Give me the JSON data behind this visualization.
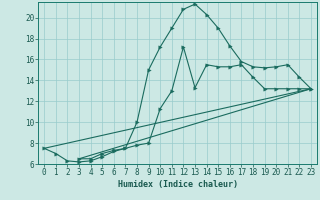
{
  "xlabel": "Humidex (Indice chaleur)",
  "ylabel": "",
  "xlim": [
    -0.5,
    23.5
  ],
  "ylim": [
    6,
    21.5
  ],
  "yticks": [
    6,
    8,
    10,
    12,
    14,
    16,
    18,
    20
  ],
  "xticks": [
    0,
    1,
    2,
    3,
    4,
    5,
    6,
    7,
    8,
    9,
    10,
    11,
    12,
    13,
    14,
    15,
    16,
    17,
    18,
    19,
    20,
    21,
    22,
    23
  ],
  "background_color": "#cce8e4",
  "grid_color": "#99cccc",
  "line_color": "#1a6b5e",
  "curves_with_markers": [
    {
      "x": [
        0,
        1,
        2,
        3,
        4,
        5,
        6,
        7,
        8,
        9,
        10,
        11,
        12,
        13,
        14,
        15,
        16,
        17,
        18,
        19,
        20,
        21,
        22,
        23
      ],
      "y": [
        7.5,
        7.0,
        6.3,
        6.2,
        6.3,
        6.7,
        7.2,
        7.5,
        10.0,
        15.0,
        17.2,
        19.0,
        20.8,
        21.3,
        20.3,
        19.0,
        17.3,
        15.8,
        15.3,
        15.2,
        15.3,
        15.5,
        14.3,
        13.2
      ]
    },
    {
      "x": [
        3,
        4,
        5,
        6,
        7,
        8,
        9,
        10,
        11,
        12,
        13,
        14,
        15,
        16,
        17,
        18,
        19,
        20,
        21,
        22,
        23
      ],
      "y": [
        6.5,
        6.5,
        7.0,
        7.3,
        7.5,
        7.8,
        8.0,
        11.3,
        13.0,
        17.2,
        13.3,
        15.5,
        15.3,
        15.3,
        15.5,
        14.3,
        13.2,
        13.2,
        13.2,
        13.2,
        13.2
      ]
    }
  ],
  "straight_lines": [
    {
      "x": [
        3,
        23
      ],
      "y": [
        6.5,
        13.2
      ]
    },
    {
      "x": [
        0,
        23
      ],
      "y": [
        7.5,
        13.2
      ]
    }
  ]
}
